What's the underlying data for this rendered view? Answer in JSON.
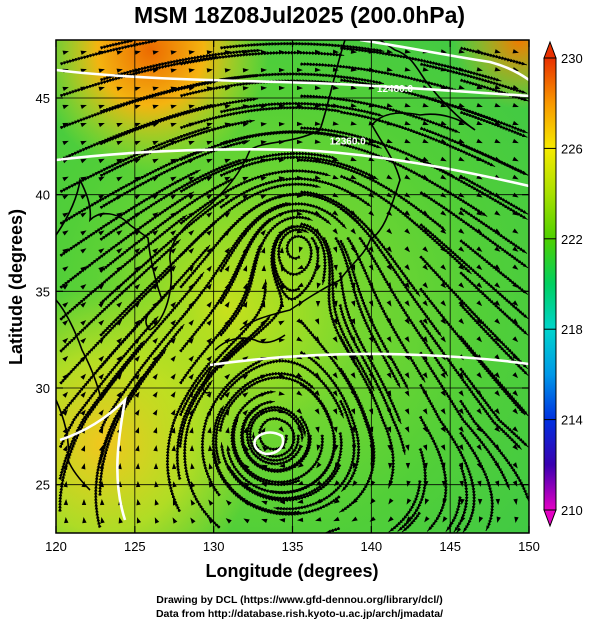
{
  "title": "MSM 18Z08Jul2025 (200.0hPa)",
  "map": {
    "x_axis": {
      "label": "Longitude (degrees)",
      "range": [
        120,
        150
      ],
      "ticks": [
        120,
        125,
        130,
        135,
        140,
        145,
        150
      ]
    },
    "y_axis": {
      "label": "Latitude (degrees)",
      "range": [
        22.5,
        48
      ],
      "ticks": [
        25,
        30,
        35,
        40,
        45
      ]
    },
    "grid": true,
    "contours": [
      {
        "label": "12480.0",
        "lon": 141.5,
        "lat": 45.3
      },
      {
        "label": "12360.0",
        "lon": 138.5,
        "lat": 42.6
      }
    ],
    "lows": [
      {
        "lon": 135.3,
        "lat": 37.8,
        "kind": "upper cyclonic circulation"
      },
      {
        "lon": 133.7,
        "lat": 27.6,
        "kind": "closed low"
      }
    ]
  },
  "colorbar": {
    "min": 210,
    "max": 230,
    "ticks": [
      210,
      214,
      218,
      222,
      226,
      230
    ],
    "colors": [
      "#e400c4",
      "#3a00b0",
      "#0030e0",
      "#0098e8",
      "#00d4cc",
      "#00d060",
      "#4ed000",
      "#a8e000",
      "#f6ea00",
      "#f89800",
      "#e83000"
    ]
  },
  "credits": {
    "line1": "Drawing by DCL (https://www.gfd-dennou.org/library/dcl/)",
    "line2": "Data from http://database.rish.kyoto-u.ac.jp/arch/jmadata/"
  }
}
